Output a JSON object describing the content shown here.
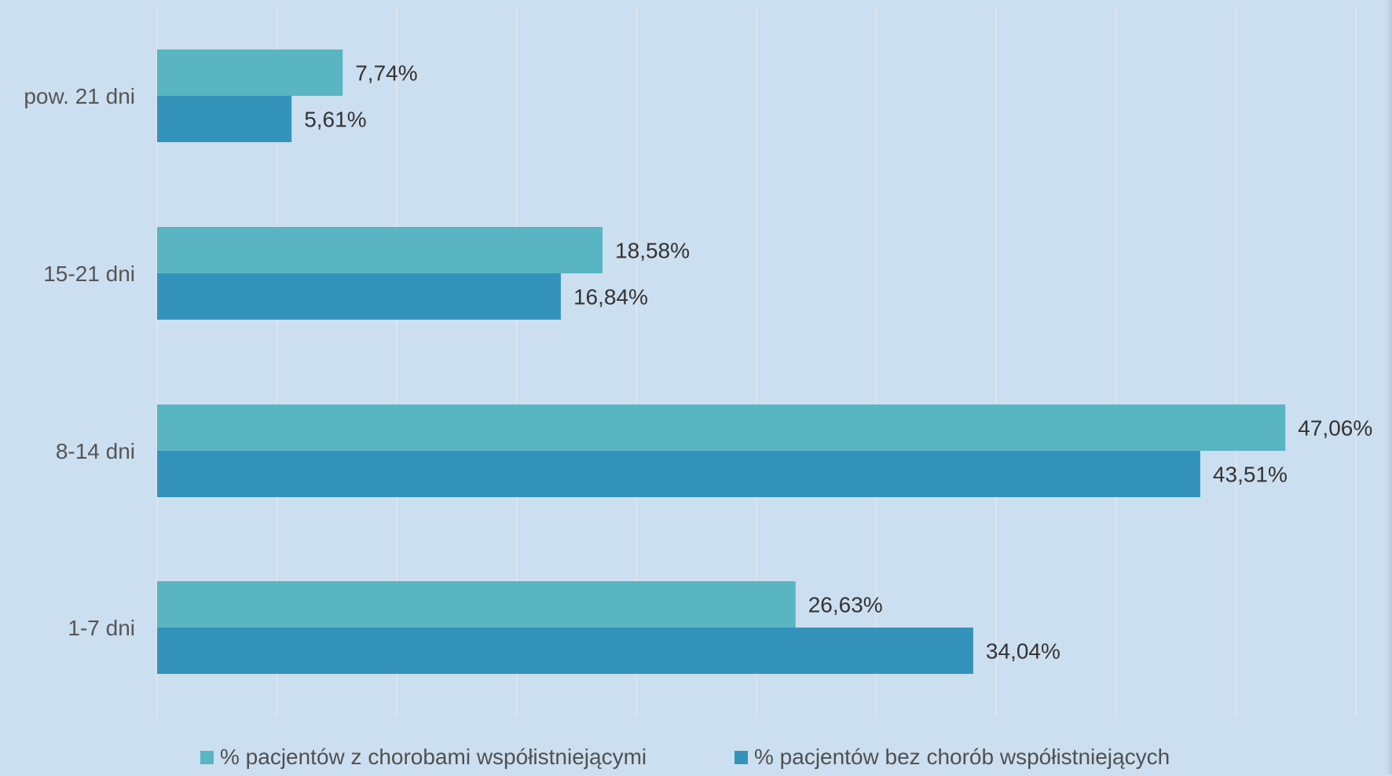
{
  "colors": {
    "background": "#ccdff0",
    "gridline": "#dde4ec",
    "series_with": "#59b5c1",
    "series_without": "#3493bb"
  },
  "chart_data": {
    "type": "bar",
    "orientation": "horizontal",
    "categories": [
      "pow. 21  dni",
      "15-21 dni",
      "8-14 dni",
      "1-7  dni"
    ],
    "series": [
      {
        "name": "% pacjentów z chorobami współistniejącymi",
        "values": [
          7.74,
          18.58,
          47.06,
          26.63
        ],
        "labels": [
          "7,74%",
          "18,58%",
          "47,06%",
          "26,63%"
        ]
      },
      {
        "name": "% pacjentów bez chorób współistniejących",
        "values": [
          5.61,
          16.84,
          43.51,
          34.04
        ],
        "labels": [
          "5,61%",
          "16,84%",
          "43,51%",
          "34,04%"
        ]
      }
    ],
    "xlim": [
      0,
      50
    ],
    "grid": true,
    "legend_position": "bottom"
  }
}
